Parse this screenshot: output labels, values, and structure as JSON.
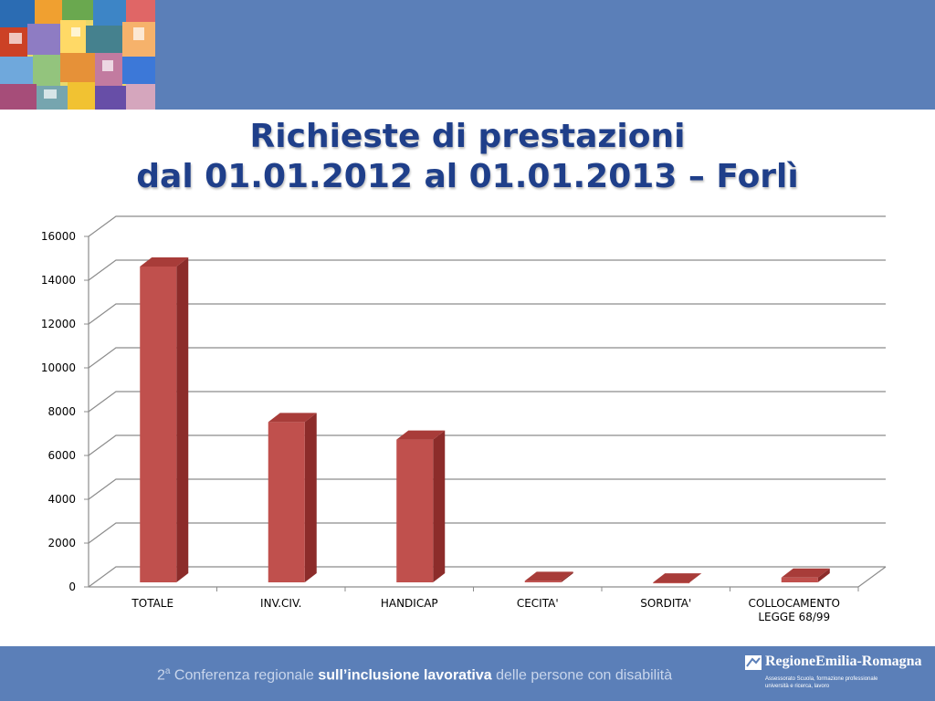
{
  "slide": {
    "title_line1": "Richieste di prestazioni",
    "title_line2": "dal 01.01.2012 al 01.01.2013 – Forlì"
  },
  "footer": {
    "ordinal": "2",
    "ordinal_sup": "a",
    "part1": " Conferenza regionale ",
    "part2": "sull’inclusione lavorativa",
    "part3": " delle persone con disabilità"
  },
  "logo": {
    "name": "RegioneEmilia-Romagna",
    "sub_line1": "Assessorato Scuola, formazione professionale",
    "sub_line2": "università e ricerca, lavoro"
  },
  "colors": {
    "band": "#5b7fb8",
    "title": "#1f3f8a",
    "bar_front": "#c0504d",
    "bar_side": "#8c2c2a",
    "bar_top": "#a83c39"
  },
  "chart_data": {
    "type": "bar",
    "categories": [
      "TOTALE",
      "INV.CIV.",
      "HANDICAP",
      "CECITA'",
      "SORDITA'",
      "COLLOCAMENTO LEGGE 68/99"
    ],
    "category_lines": [
      [
        "TOTALE"
      ],
      [
        "INV.CIV."
      ],
      [
        "HANDICAP"
      ],
      [
        "CECITA'"
      ],
      [
        "SORDITA'"
      ],
      [
        "COLLOCAMENTO",
        "LEGGE 68/99"
      ]
    ],
    "values": [
      14500,
      7400,
      6600,
      150,
      80,
      300
    ],
    "ylim": [
      0,
      16000
    ],
    "yticks": [
      "0",
      "2000",
      "4000",
      "6000",
      "8000",
      "10000",
      "12000",
      "14000",
      "16000"
    ],
    "grid": true,
    "legend": "none",
    "style": "3d-column"
  }
}
